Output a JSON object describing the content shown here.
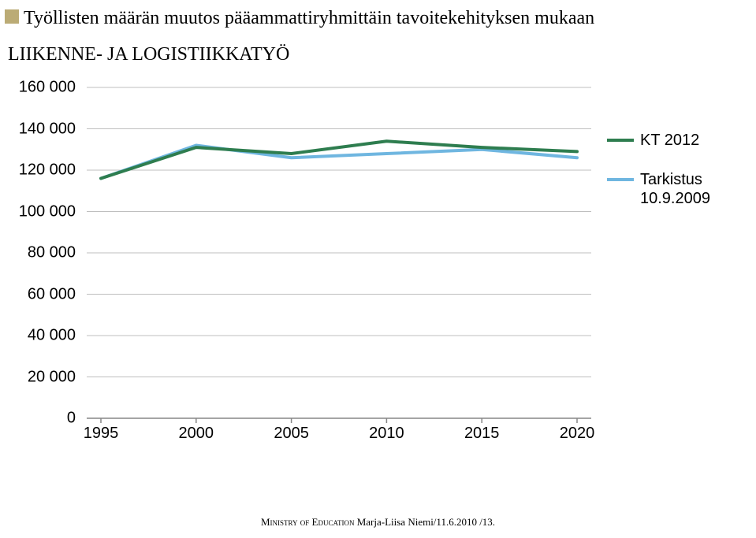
{
  "title": "Työllisten määrän muutos pääammattiryhmittäin tavoitekehityksen mukaan",
  "subtitle": "LIIKENNE- JA LOGISTIIKKATYÖ",
  "footer": {
    "ministry": "Ministry of Education",
    "author": " Marja-Liisa Niemi/11.6.2010 /13."
  },
  "chart": {
    "type": "line",
    "background_color": "#ffffff",
    "grid_color": "#bfbfbf",
    "axis_color": "#868686",
    "tick_color": "#868686",
    "y": {
      "min": 0,
      "max": 160000,
      "step": 20000,
      "labels": [
        "0",
        "20 000",
        "40 000",
        "60 000",
        "80 000",
        "100 000",
        "120 000",
        "140 000",
        "160 000"
      ],
      "label_fontsize": 20
    },
    "x": {
      "values": [
        1995,
        2000,
        2005,
        2010,
        2015,
        2020
      ],
      "labels": [
        "1995",
        "2000",
        "2005",
        "2010",
        "2015",
        "2020"
      ],
      "label_fontsize": 20
    },
    "series": [
      {
        "name": "KT 2012",
        "color": "#2e7d4f",
        "line_width": 4,
        "x": [
          1995,
          2000,
          2005,
          2010,
          2015,
          2020
        ],
        "y": [
          116000,
          131000,
          128000,
          134000,
          131000,
          129000
        ]
      },
      {
        "name": "Tarkistus 10.9.2009",
        "color": "#6fb6e0",
        "line_width": 4,
        "x": [
          1995,
          2000,
          2005,
          2010,
          2015,
          2020
        ],
        "y": [
          116000,
          132000,
          126000,
          128000,
          130000,
          126000
        ]
      }
    ],
    "legend": {
      "items": [
        {
          "label": "KT 2012",
          "color": "#2e7d4f"
        },
        {
          "label": "Tarkistus 10.9.2009",
          "color": "#6fb6e0"
        }
      ],
      "fontsize": 20
    }
  }
}
